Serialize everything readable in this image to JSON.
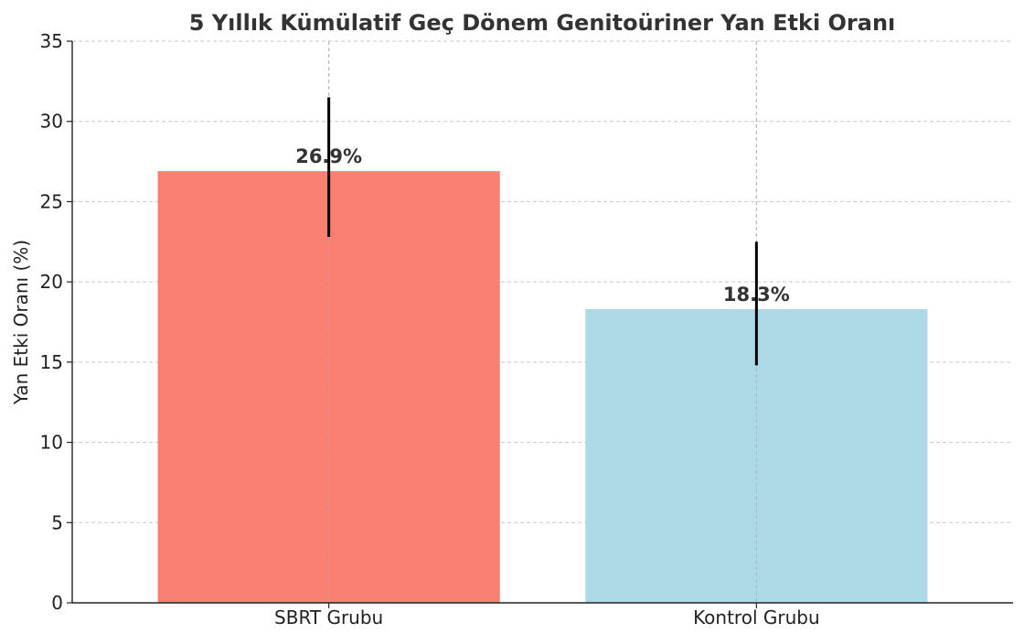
{
  "chart_data": {
    "type": "bar",
    "title": "5 Yıllık Kümülatif Geç Dönem Genitoüriner Yan Etki Oranı",
    "xlabel": "",
    "ylabel": "Yan Etki Oranı (%)",
    "categories": [
      "SBRT Grubu",
      "Kontrol Grubu"
    ],
    "values": [
      26.9,
      18.3
    ],
    "error_low": [
      22.8,
      14.8
    ],
    "error_high": [
      31.5,
      22.5
    ],
    "data_labels": [
      "26.9%",
      "18.3%"
    ],
    "bar_colors": [
      "#fa8072",
      "#add8e6"
    ],
    "error_color": "#000000",
    "ylim": [
      0,
      35
    ],
    "yticks": [
      0,
      5,
      10,
      15,
      20,
      25,
      30,
      35
    ],
    "grid": true,
    "legend": "none"
  }
}
